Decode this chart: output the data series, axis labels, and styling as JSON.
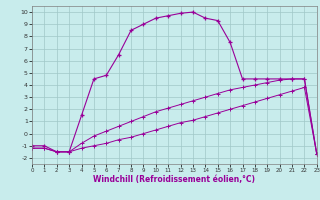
{
  "xlabel": "Windchill (Refroidissement éolien,°C)",
  "bg_color": "#c8ecec",
  "grid_color": "#a0c8c8",
  "line_color": "#990099",
  "curve1_x": [
    0,
    1,
    2,
    3,
    4,
    5,
    6,
    7,
    8,
    9,
    10,
    11,
    12,
    13,
    14,
    15,
    16,
    17,
    18,
    19,
    20,
    21,
    22,
    23
  ],
  "curve1_y": [
    -1.0,
    -1.0,
    -1.5,
    -1.5,
    1.5,
    4.5,
    4.8,
    6.5,
    8.5,
    9.0,
    9.5,
    9.7,
    9.9,
    10.0,
    9.5,
    9.3,
    7.5,
    4.5,
    4.5,
    4.5,
    4.5,
    4.5,
    4.5,
    -1.7
  ],
  "curve2_x": [
    0,
    1,
    2,
    3,
    4,
    5,
    6,
    7,
    8,
    9,
    10,
    11,
    12,
    13,
    14,
    15,
    16,
    17,
    18,
    19,
    20,
    21,
    22,
    23
  ],
  "curve2_y": [
    -1.2,
    -1.2,
    -1.5,
    -1.5,
    -0.8,
    -0.2,
    0.2,
    0.6,
    1.0,
    1.4,
    1.8,
    2.1,
    2.4,
    2.7,
    3.0,
    3.3,
    3.6,
    3.8,
    4.0,
    4.2,
    4.4,
    4.5,
    4.5,
    -1.7
  ],
  "curve3_x": [
    0,
    1,
    2,
    3,
    4,
    5,
    6,
    7,
    8,
    9,
    10,
    11,
    12,
    13,
    14,
    15,
    16,
    17,
    18,
    19,
    20,
    21,
    22,
    23
  ],
  "curve3_y": [
    -1.2,
    -1.2,
    -1.5,
    -1.5,
    -1.2,
    -1.0,
    -0.8,
    -0.5,
    -0.3,
    0.0,
    0.3,
    0.6,
    0.9,
    1.1,
    1.4,
    1.7,
    2.0,
    2.3,
    2.6,
    2.9,
    3.2,
    3.5,
    3.8,
    -1.7
  ],
  "xlim": [
    0,
    23
  ],
  "ylim": [
    -2.5,
    10.5
  ],
  "yticks": [
    -2,
    -1,
    0,
    1,
    2,
    3,
    4,
    5,
    6,
    7,
    8,
    9,
    10
  ],
  "xticks": [
    0,
    1,
    2,
    3,
    4,
    5,
    6,
    7,
    8,
    9,
    10,
    11,
    12,
    13,
    14,
    15,
    16,
    17,
    18,
    19,
    20,
    21,
    22,
    23
  ]
}
